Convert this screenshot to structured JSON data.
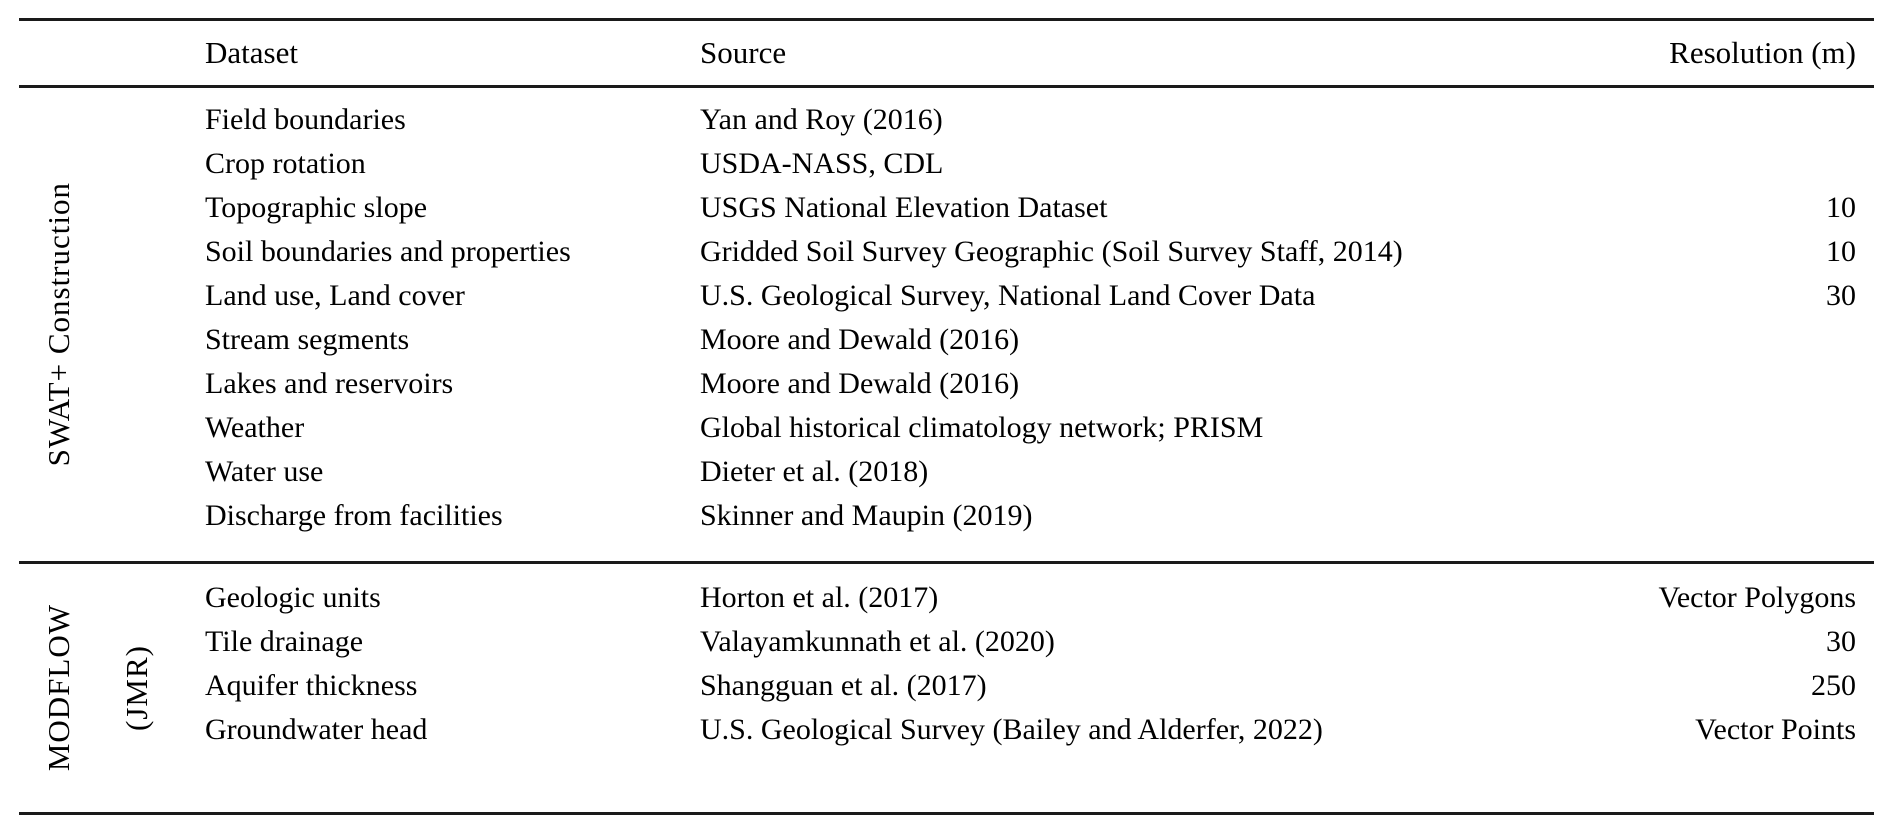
{
  "page": {
    "background_color": "#ffffff",
    "text_color": "#000000",
    "rule_color": "#1a1a1a"
  },
  "table": {
    "columns": {
      "dataset_label": "Dataset",
      "source_label": "Source",
      "resolution_label": "Resolution (m)"
    },
    "groups": [
      {
        "label": "SWAT+ Construction",
        "sublabel": "",
        "rows": [
          {
            "dataset": "Field boundaries",
            "source": "Yan and Roy (2016)",
            "resolution": ""
          },
          {
            "dataset": "Crop rotation",
            "source": "USDA-NASS, CDL",
            "resolution": ""
          },
          {
            "dataset": "Topographic slope",
            "source": "USGS National Elevation Dataset",
            "resolution": "10"
          },
          {
            "dataset": "Soil boundaries and properties",
            "source": "Gridded Soil Survey Geographic (Soil Survey Staff, 2014)",
            "resolution": "10"
          },
          {
            "dataset": "Land use, Land cover",
            "source": "U.S. Geological Survey, National Land Cover Data",
            "resolution": "30"
          },
          {
            "dataset": "Stream segments",
            "source": "Moore and Dewald (2016)",
            "resolution": ""
          },
          {
            "dataset": "Lakes and reservoirs",
            "source": "Moore and Dewald (2016)",
            "resolution": ""
          },
          {
            "dataset": "Weather",
            "source": "Global historical climatology network; PRISM",
            "resolution": ""
          },
          {
            "dataset": "Water use",
            "source": "Dieter et al. (2018)",
            "resolution": ""
          },
          {
            "dataset": "Discharge from facilities",
            "source": "Skinner and Maupin (2019)",
            "resolution": ""
          }
        ]
      },
      {
        "label": "MODFLOW",
        "sublabel": "(JMR)",
        "rows": [
          {
            "dataset": "Geologic units",
            "source": "Horton et al. (2017)",
            "resolution": "Vector Polygons"
          },
          {
            "dataset": "Tile drainage",
            "source": "Valayamkunnath et al. (2020)",
            "resolution": "30"
          },
          {
            "dataset": "Aquifer thickness",
            "source": "Shangguan et al. (2017)",
            "resolution": "250"
          },
          {
            "dataset": "Groundwater head",
            "source": "U.S. Geological Survey (Bailey and Alderfer, 2022)",
            "resolution": "Vector Points"
          }
        ]
      }
    ]
  }
}
